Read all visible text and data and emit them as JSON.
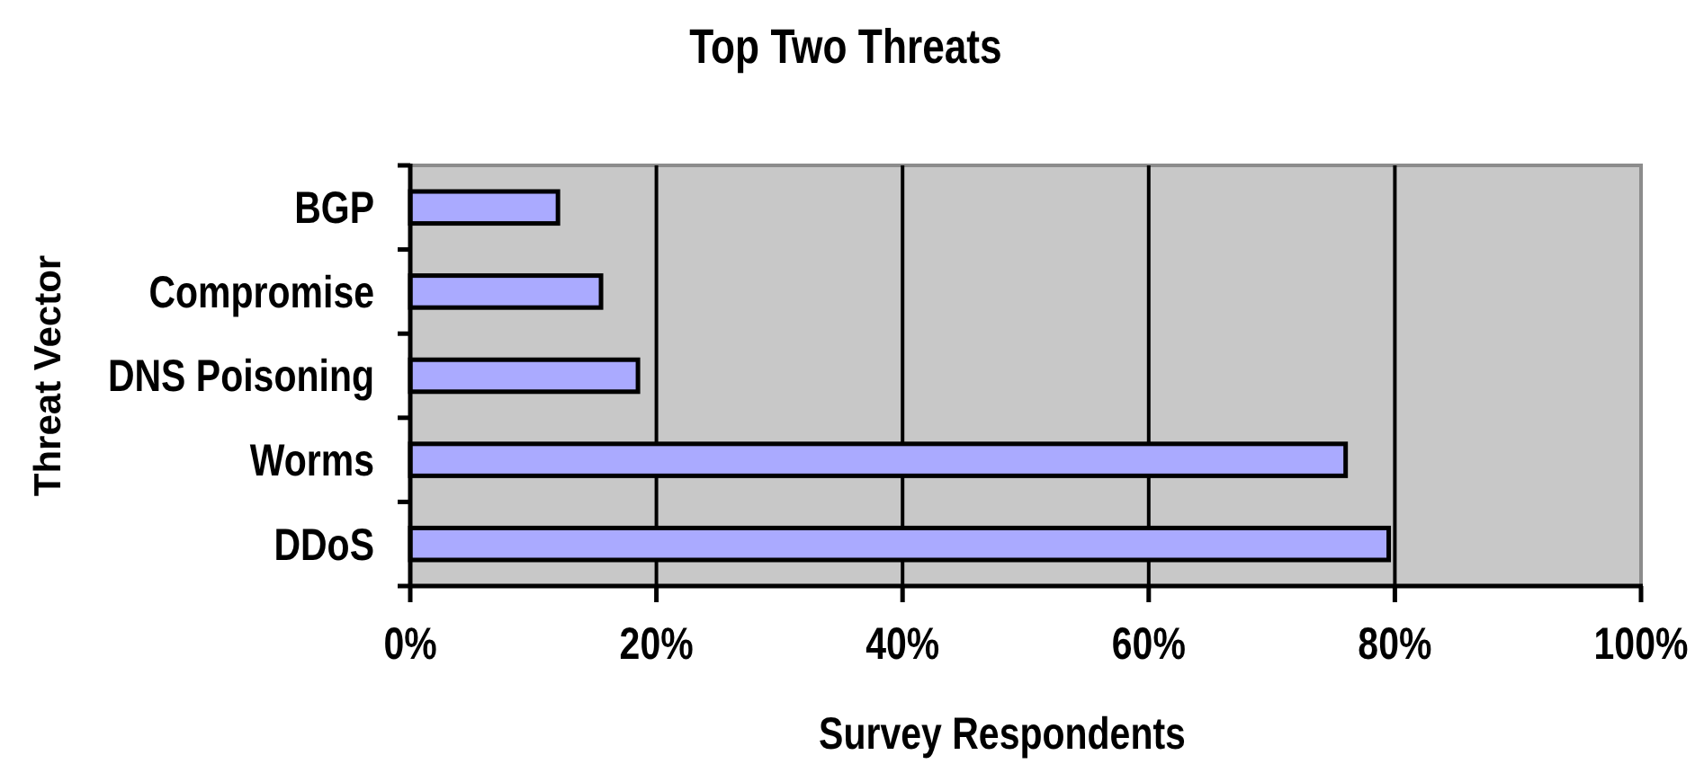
{
  "chart_data": {
    "type": "bar",
    "title": "Top Two Threats",
    "xlabel": "Survey Respondents",
    "ylabel": "Threat Vector",
    "orientation": "horizontal",
    "categories": [
      "BGP",
      "Compromise",
      "DNS Poisoning",
      "Worms",
      "DDoS"
    ],
    "values": [
      12,
      15.5,
      18.5,
      76,
      79.5
    ],
    "color": "#aaaaff",
    "xlim": [
      0,
      100
    ],
    "xticks": [
      {
        "value": 0,
        "label": "0%"
      },
      {
        "value": 20,
        "label": "20%"
      },
      {
        "value": 40,
        "label": "40%"
      },
      {
        "value": 60,
        "label": "60%"
      },
      {
        "value": 80,
        "label": "80%"
      },
      {
        "value": 100,
        "label": "100%"
      }
    ],
    "grid": "x"
  }
}
